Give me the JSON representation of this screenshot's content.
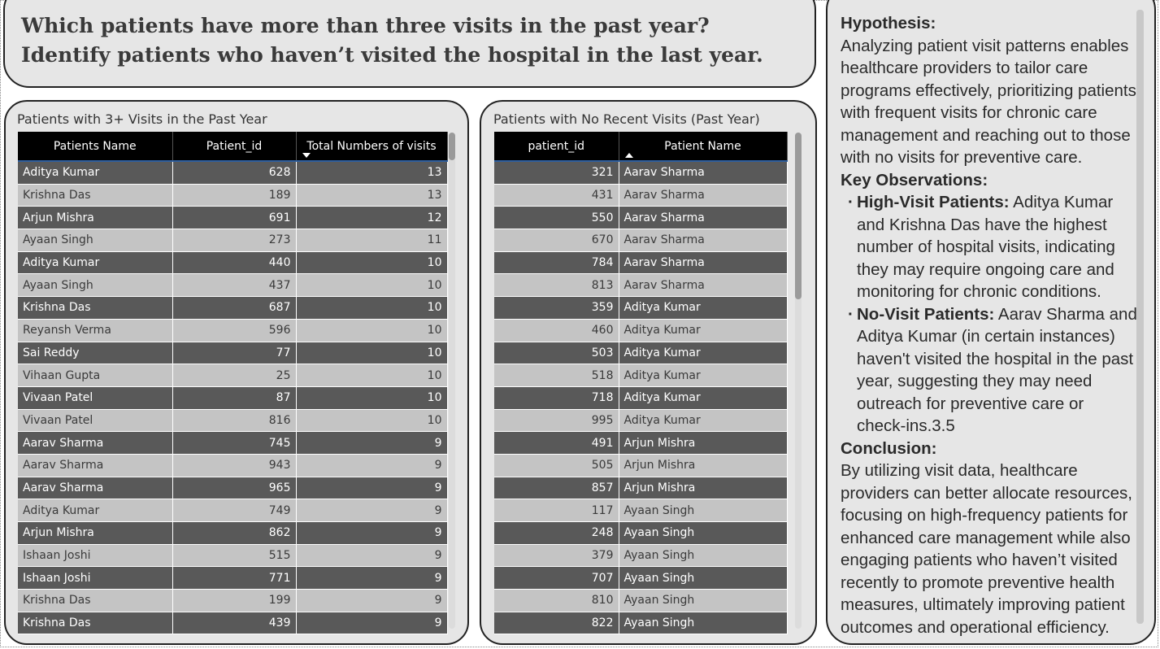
{
  "title": "Which patients have more than three visits in the past year? Identify patients who haven’t visited the hospital in the last year.",
  "left_table": {
    "title": "Patients with 3+ Visits in the Past Year",
    "columns": [
      "Patients Name",
      "Patient_id",
      "Total Numbers of visits"
    ],
    "sorted_column": "Total Numbers of visits",
    "sort_direction": "descending",
    "rows": [
      [
        "Aditya Kumar",
        "628",
        "13"
      ],
      [
        "Krishna Das",
        "189",
        "13"
      ],
      [
        "Arjun Mishra",
        "691",
        "12"
      ],
      [
        "Ayaan Singh",
        "273",
        "11"
      ],
      [
        "Aditya Kumar",
        "440",
        "10"
      ],
      [
        "Ayaan Singh",
        "437",
        "10"
      ],
      [
        "Krishna Das",
        "687",
        "10"
      ],
      [
        "Reyansh Verma",
        "596",
        "10"
      ],
      [
        "Sai Reddy",
        "77",
        "10"
      ],
      [
        "Vihaan Gupta",
        "25",
        "10"
      ],
      [
        "Vivaan Patel",
        "87",
        "10"
      ],
      [
        "Vivaan Patel",
        "816",
        "10"
      ],
      [
        "Aarav Sharma",
        "745",
        "9"
      ],
      [
        "Aarav Sharma",
        "943",
        "9"
      ],
      [
        "Aarav Sharma",
        "965",
        "9"
      ],
      [
        "Aditya Kumar",
        "749",
        "9"
      ],
      [
        "Arjun Mishra",
        "862",
        "9"
      ],
      [
        "Ishaan Joshi",
        "515",
        "9"
      ],
      [
        "Ishaan Joshi",
        "771",
        "9"
      ],
      [
        "Krishna Das",
        "199",
        "9"
      ],
      [
        "Krishna Das",
        "439",
        "9"
      ]
    ]
  },
  "right_table": {
    "title": "Patients with No Recent Visits (Past Year)",
    "columns": [
      "patient_id",
      "Patient Name"
    ],
    "sorted_column": "Patient Name",
    "sort_direction": "ascending",
    "rows": [
      [
        "321",
        "Aarav Sharma"
      ],
      [
        "431",
        "Aarav Sharma"
      ],
      [
        "550",
        "Aarav Sharma"
      ],
      [
        "670",
        "Aarav Sharma"
      ],
      [
        "784",
        "Aarav Sharma"
      ],
      [
        "813",
        "Aarav Sharma"
      ],
      [
        "359",
        "Aditya Kumar"
      ],
      [
        "460",
        "Aditya Kumar"
      ],
      [
        "503",
        "Aditya Kumar"
      ],
      [
        "518",
        "Aditya Kumar"
      ],
      [
        "718",
        "Aditya Kumar"
      ],
      [
        "995",
        "Aditya Kumar"
      ],
      [
        "491",
        "Arjun Mishra"
      ],
      [
        "505",
        "Arjun Mishra"
      ],
      [
        "857",
        "Arjun Mishra"
      ],
      [
        "117",
        "Ayaan Singh"
      ],
      [
        "248",
        "Ayaan Singh"
      ],
      [
        "379",
        "Ayaan Singh"
      ],
      [
        "707",
        "Ayaan Singh"
      ],
      [
        "810",
        "Ayaan Singh"
      ],
      [
        "822",
        "Ayaan Singh"
      ]
    ]
  },
  "insights": {
    "hypothesis_heading": "Hypothesis:",
    "hypothesis_text": "Analyzing patient visit patterns enables healthcare providers to tailor care programs effectively, prioritizing patients with frequent visits for chronic care management and reaching out to those with no visits for preventive care.",
    "observations_heading": "Key Observations:",
    "obs1_label": "High-Visit Patients:",
    "obs1_text": " Aditya Kumar and Krishna Das have the highest number of hospital visits, indicating they may require ongoing care and monitoring for chronic conditions.",
    "obs2_label": "No-Visit Patients:",
    "obs2_text": " Aarav Sharma and Aditya Kumar (in certain instances) haven't visited the hospital in the past year, suggesting they may need outreach for preventive care or check-ins.3.5",
    "conclusion_heading": "Conclusion:",
    "conclusion_text": "By utilizing visit data, healthcare providers can better allocate resources, focusing on high-frequency patients for enhanced care management while also engaging patients who haven’t visited recently to promote preventive health measures, ultimately improving patient outcomes and operational efficiency."
  },
  "colors": {
    "panel_bg": "#e6e6e6",
    "header_bg": "#000000",
    "row_dark": "#595959",
    "row_light": "#c4c4c4",
    "border": "#222222"
  }
}
